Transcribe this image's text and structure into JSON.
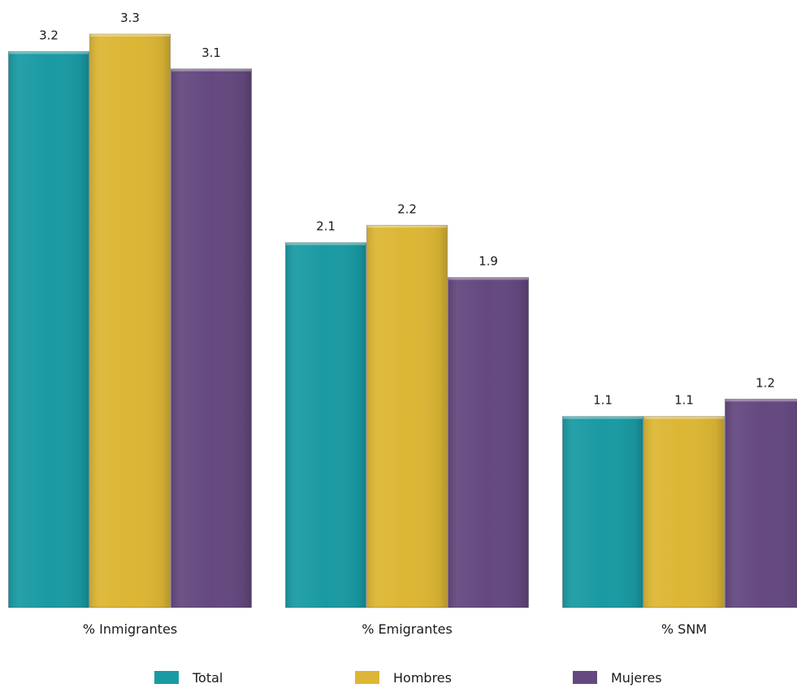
{
  "chart_data": {
    "type": "bar",
    "categories": [
      "% Inmigrantes",
      "% Emigrantes",
      "% SNM"
    ],
    "series": [
      {
        "name": "Total",
        "values": [
          3.2,
          2.1,
          1.1
        ],
        "color": "#1a9aa3"
      },
      {
        "name": "Hombres",
        "values": [
          3.3,
          2.2,
          1.1
        ],
        "color": "#dcb634"
      },
      {
        "name": "Mujeres",
        "values": [
          3.1,
          1.9,
          1.2
        ],
        "color": "#64487f"
      }
    ],
    "value_labels": [
      [
        "3.2",
        "2.1",
        "1.1"
      ],
      [
        "3.3",
        "2.2",
        "1.1"
      ],
      [
        "3.1",
        "1.9",
        "1.2"
      ]
    ],
    "ylim": [
      0,
      3.3
    ],
    "grid": false,
    "legend_position": "bottom"
  }
}
